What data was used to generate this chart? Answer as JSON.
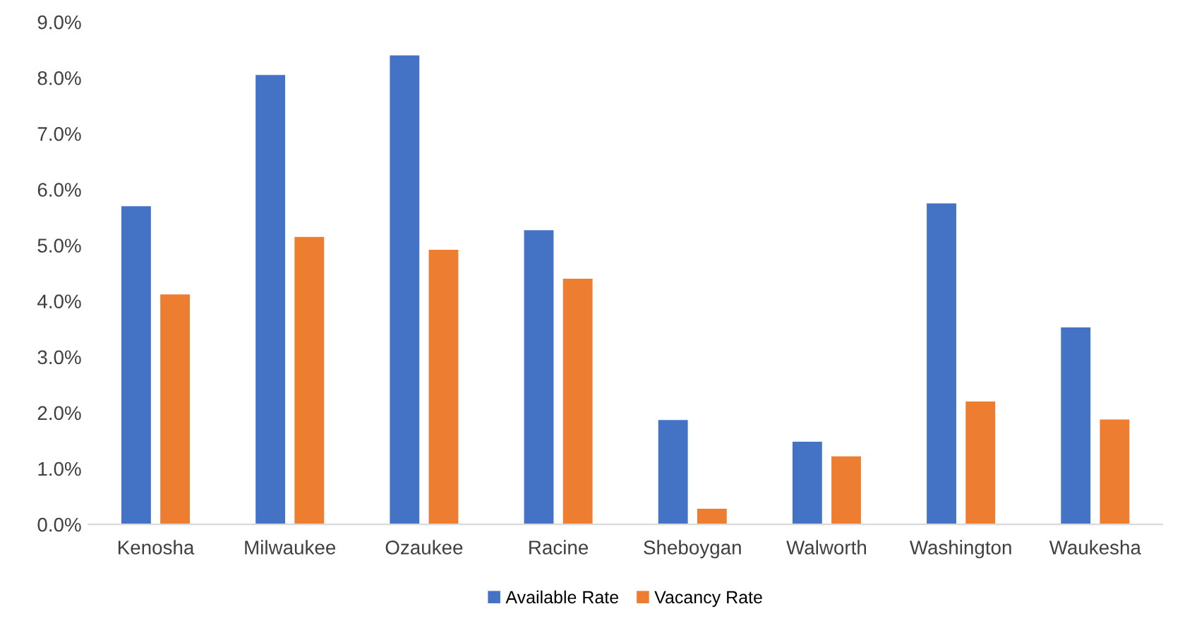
{
  "chart_data": {
    "type": "bar",
    "categories": [
      "Kenosha",
      "Milwaukee",
      "Ozaukee",
      "Racine",
      "Sheboygan",
      "Walworth",
      "Washington",
      "Waukesha"
    ],
    "series": [
      {
        "name": "Available Rate",
        "color": "#4472c4",
        "values": [
          5.7,
          8.05,
          8.4,
          5.27,
          1.87,
          1.48,
          5.75,
          3.53
        ]
      },
      {
        "name": "Vacancy Rate",
        "color": "#ed7d31",
        "values": [
          4.12,
          5.15,
          4.92,
          4.4,
          0.28,
          1.22,
          2.2,
          1.88
        ]
      }
    ],
    "ylim": [
      0,
      9
    ],
    "yticks": [
      {
        "value": 0,
        "label": "0.0%"
      },
      {
        "value": 1,
        "label": "1.0%"
      },
      {
        "value": 2,
        "label": "2.0%"
      },
      {
        "value": 3,
        "label": "3.0%"
      },
      {
        "value": 4,
        "label": "4.0%"
      },
      {
        "value": 5,
        "label": "5.0%"
      },
      {
        "value": 6,
        "label": "6.0%"
      },
      {
        "value": 7,
        "label": "7.0%"
      },
      {
        "value": 8,
        "label": "8.0%"
      },
      {
        "value": 9,
        "label": "9.0%"
      }
    ],
    "grid": false,
    "legend": "bottom"
  }
}
